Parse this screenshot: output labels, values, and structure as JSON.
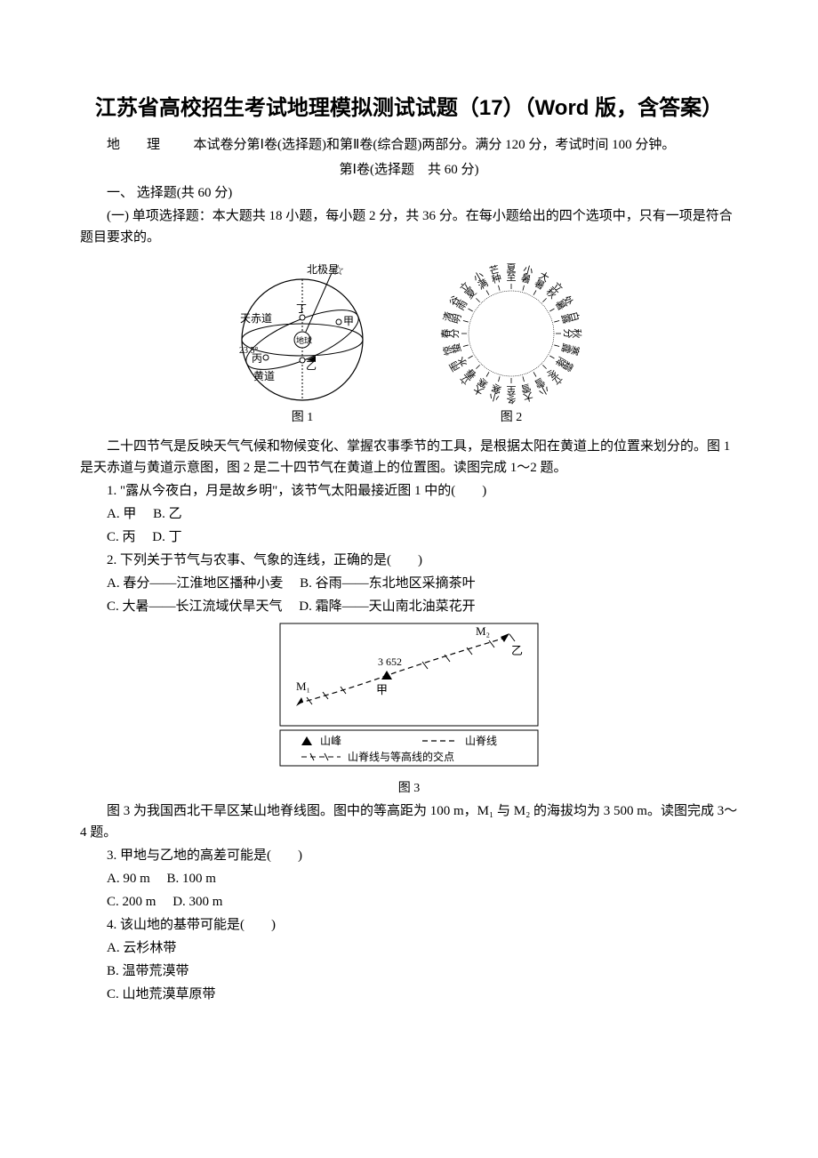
{
  "title": "江苏省高校招生考试地理模拟测试试题（17）（Word 版，含答案）",
  "subject_line": {
    "label": "地　　理",
    "desc": "本试卷分第Ⅰ卷(选择题)和第Ⅱ卷(综合题)两部分。满分 120 分，考试时间 100 分钟。"
  },
  "part1_heading": "第Ⅰ卷(选择题　共 60 分)",
  "section1_heading": "一、 选择题(共 60 分)",
  "subsection1_heading": "(一) 单项选择题：本大题共 18 小题，每小题 2 分，共 36 分。在每小题给出的四个选项中，只有一项是符合题目要求的。",
  "fig1_caption": "图 1",
  "fig2_caption": "图 2",
  "fig3_caption": "图 3",
  "passage1": "二十四节气是反映天气气候和物候变化、掌握农事季节的工具，是根据太阳在黄道上的位置来划分的。图 1 是天赤道与黄道示意图，图 2 是二十四节气在黄道上的位置图。读图完成 1～2 题。",
  "q1": {
    "stem": "1. \"露从今夜白，月是故乡明\"，该节气太阳最接近图 1 中的(　　)",
    "optA": "A. 甲",
    "optB": "B. 乙",
    "optC": "C. 丙",
    "optD": "D. 丁"
  },
  "q2": {
    "stem": "2. 下列关于节气与农事、气象的连线，正确的是(　　)",
    "optA": "A. 春分——江淮地区播种小麦",
    "optB": "B. 谷雨——东北地区采摘茶叶",
    "optC": "C. 大暑——长江流域伏旱天气",
    "optD": "D. 霜降——天山南北油菜花开"
  },
  "passage2": "图 3 为我国西北干旱区某山地脊线图。图中的等高距为 100 m，M₁ 与 M₂ 的海拔均为 3 500 m。读图完成 3～4 题。",
  "q3": {
    "stem": "3. 甲地与乙地的高差可能是(　　)",
    "optA": "A. 90 m",
    "optB": "B. 100 m",
    "optC": "C. 200 m",
    "optD": "D. 300 m"
  },
  "q4": {
    "stem": "4. 该山地的基带可能是(　　)",
    "optA": "A. 云杉林带",
    "optB": "B. 温带荒漠带",
    "optC": "C. 山地荒漠草原带"
  },
  "fig1": {
    "labels": {
      "polaris": "北极星",
      "equator": "天赤道",
      "ecliptic": "黄道",
      "earth": "地球",
      "angle": "23.5°",
      "jia": "甲",
      "yi": "乙",
      "bing": "丙",
      "ding": "丁"
    },
    "colors": {
      "stroke": "#000000",
      "fill": "#ffffff"
    }
  },
  "fig2": {
    "terms": [
      "春分",
      "清明",
      "谷雨",
      "立夏",
      "小满",
      "芒种",
      "夏至",
      "小暑",
      "大暑",
      "立秋",
      "处暑",
      "白露",
      "秋分",
      "寒露",
      "霜降",
      "立冬",
      "小雪",
      "大雪",
      "冬至",
      "小寒",
      "大寒",
      "立春",
      "雨水",
      "惊蛰"
    ],
    "colors": {
      "stroke": "#000000"
    }
  },
  "fig3": {
    "labels": {
      "m1": "M₁",
      "m2": "M₂",
      "jia": "甲",
      "yi": "乙",
      "elev": "3 652"
    },
    "legend": {
      "peak": "山峰",
      "ridge": "山脊线",
      "intersect": "山脊线与等高线的交点"
    },
    "colors": {
      "stroke": "#000000",
      "fill": "#ffffff"
    }
  }
}
